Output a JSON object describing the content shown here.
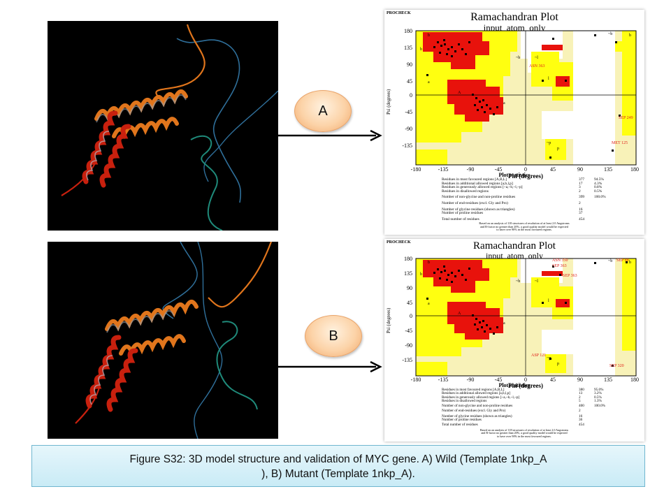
{
  "panels": [
    {
      "id": "A",
      "label": "A",
      "plot": {
        "header": "PROCHECK",
        "title": "Ramachandran Plot",
        "subtitle": "input_atom_only",
        "x_axis_label": "Phi (degrees)",
        "y_axis_label": "Psi (degrees)",
        "x_ticks": [
          "-180",
          "-135",
          "-90",
          "-45",
          "0",
          "45",
          "90",
          "135",
          "180"
        ],
        "y_ticks": [
          "180",
          "135",
          "90",
          "45",
          "0",
          "-45",
          "-90",
          "-135"
        ],
        "region_letters": [
          "b",
          "b",
          "a",
          "A",
          "a",
          "~b",
          "~l",
          "l",
          "~p",
          "p",
          "b",
          "~b"
        ],
        "residue_labels": [
          "ASN 363",
          "SEP 249",
          "MET 125"
        ],
        "stats_title": "Plot statistics",
        "stats": [
          {
            "label": "Residues in most favoured regions  [A,B,L]",
            "count": "377",
            "pct": "94.5%"
          },
          {
            "label": "Residues in additional allowed regions  [a,b,l,p]",
            "count": "17",
            "pct": "4.3%"
          },
          {
            "label": "Residues in generously allowed regions  [~a,~b,~l,~p]",
            "count": "3",
            "pct": "0.8%"
          },
          {
            "label": "Residues in disallowed regions",
            "count": "2",
            "pct": "0.5%"
          },
          {
            "label": "Number of non-glycine and non-proline residues",
            "count": "399",
            "pct": "100.0%"
          },
          {
            "label": "Number of end-residues (excl. Gly and Pro)",
            "count": "2",
            "pct": ""
          },
          {
            "label": "Number of glycine residues (shown as triangles)",
            "count": "16",
            "pct": ""
          },
          {
            "label": "Number of proline residues",
            "count": "37",
            "pct": ""
          },
          {
            "label": "Total number of residues",
            "count": "454",
            "pct": ""
          }
        ],
        "footnote": [
          "Based on an analysis of 118 structures of resolution of at least 2.0 Angstroms",
          "and R-factor no greater than 20%, a good quality model would be expected",
          "to have over 90% in the most favoured regions."
        ]
      }
    },
    {
      "id": "B",
      "label": "B",
      "plot": {
        "header": "PROCHECK",
        "title": "Ramachandran Plot",
        "subtitle": "input_atom_only",
        "x_axis_label": "Phi (degrees)",
        "y_axis_label": "Psi (degrees)",
        "x_ticks": [
          "-180",
          "-135",
          "-90",
          "-45",
          "0",
          "45",
          "90",
          "135",
          "180"
        ],
        "y_ticks": [
          "180",
          "135",
          "90",
          "45",
          "0",
          "-45",
          "-90",
          "-135"
        ],
        "region_letters": [
          "b",
          "b",
          "a",
          "A",
          "a",
          "~b",
          "~l",
          "l",
          "~p",
          "p",
          "b",
          "~b"
        ],
        "residue_labels": [
          "ASN 350",
          "SEP 363",
          "SEP 363",
          "SEP 88",
          "ASP 121",
          "SEP 320"
        ],
        "stats_title": "Plot statistics",
        "stats": [
          {
            "label": "Residues in most favoured regions  [A,B,L]",
            "count": "380",
            "pct": "95.0%"
          },
          {
            "label": "Residues in additional allowed regions  [a,b,l,p]",
            "count": "13",
            "pct": "3.2%"
          },
          {
            "label": "Residues in generously allowed regions  [~a,~b,~l,~p]",
            "count": "2",
            "pct": "0.5%"
          },
          {
            "label": "Residues in disallowed regions",
            "count": "5",
            "pct": "1.3%"
          },
          {
            "label": "Number of non-glycine and non-proline residues",
            "count": "400",
            "pct": "100.0%"
          },
          {
            "label": "Number of end-residues (excl. Gly and Pro)",
            "count": "2",
            "pct": ""
          },
          {
            "label": "Number of glycine residues (shown as triangles)",
            "count": "16",
            "pct": ""
          },
          {
            "label": "Number of proline residues",
            "count": "36",
            "pct": ""
          },
          {
            "label": "Total number of residues",
            "count": "454",
            "pct": ""
          }
        ],
        "footnote": [
          "Based on an analysis of 118 structures of resolution of at least 2.0 Angstroms",
          "and R-factor no greater than 20%, a good quality model would be expected",
          "to have over 90% in the most favoured regions."
        ]
      }
    }
  ],
  "caption": {
    "line1": "Figure S32: 3D model structure and validation of MYC gene. A) Wild (Template 1nkp_A",
    "line2": "), B) Mutant (Template 1nkp_A)."
  },
  "colors": {
    "core_region": "#e8120c",
    "allowed_region": "#ffff10",
    "generous_region": "#f8f2b8",
    "disallowed_region": "#ffffff",
    "helix_red": "#c8200e",
    "helix_orange": "#e0751c",
    "coil_blue": "#2f6f9a",
    "coil_teal": "#1f8a7a",
    "oval_fill": "#fcd3a8",
    "caption_fill": "#d4eef7",
    "residue_label": "#e0201a"
  }
}
